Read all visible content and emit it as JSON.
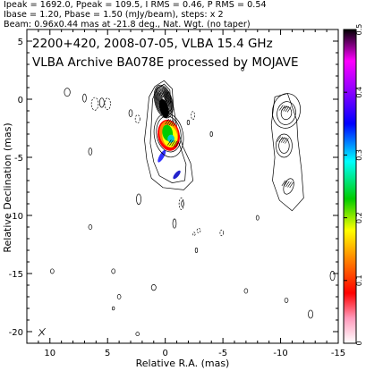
{
  "header": {
    "line1": "Ipeak = 1692.0, Ppeak = 109.5, I RMS = 0.46, P RMS = 0.54",
    "line2": "Ibase = 1.20, Pbase = 1.50 (mJy/beam), steps: x 2",
    "line3": "Beam: 0.96x0.44 mas at -21.8 deg., Nat. Wgt. (no taper)"
  },
  "plot": {
    "title_line1": "2200+420, 2008-07-05, VLBA 15.4 GHz",
    "title_line2": "VLBA Archive BA078E processed by MOJAVE",
    "xlabel": "Relative R.A. (mas)",
    "ylabel": "Relative Declination (mas)"
  },
  "colorbar": {
    "ticks": [
      "0",
      "0.1",
      "0.2",
      "0.3",
      "0.4",
      "0.5"
    ],
    "range": [
      0,
      0.5
    ],
    "colors": [
      "#ffffff",
      "#ff88aa",
      "#ff0000",
      "#ff8800",
      "#ffff00",
      "#00cc00",
      "#00ffff",
      "#0000ff",
      "#8800ff",
      "#ff00ff",
      "#000000"
    ]
  },
  "chart_data": {
    "type": "contour",
    "source": "2200+420",
    "x": {
      "label": "Relative R.A. (mas)",
      "range": [
        12,
        -15
      ],
      "ticks": [
        10,
        5,
        0,
        -5,
        -10,
        -15
      ]
    },
    "y": {
      "label": "Relative Declination (mas)",
      "range": [
        -21,
        6
      ],
      "ticks": [
        5,
        0,
        -5,
        -10,
        -15,
        -20
      ]
    },
    "core": {
      "x": 0,
      "y": 0
    },
    "jet_components": [
      {
        "x": 0.2,
        "y": 0.0
      },
      {
        "x": -0.3,
        "y": -3.0
      },
      {
        "x": -0.8,
        "y": -5.2
      },
      {
        "x": -1.2,
        "y": -7.0
      },
      {
        "x": -10.5,
        "y": -1.5
      },
      {
        "x": -10.2,
        "y": -3.8
      },
      {
        "x": -10.6,
        "y": -7.5
      }
    ],
    "polarization_colors": "fractional polarization 0 to 0.5"
  }
}
